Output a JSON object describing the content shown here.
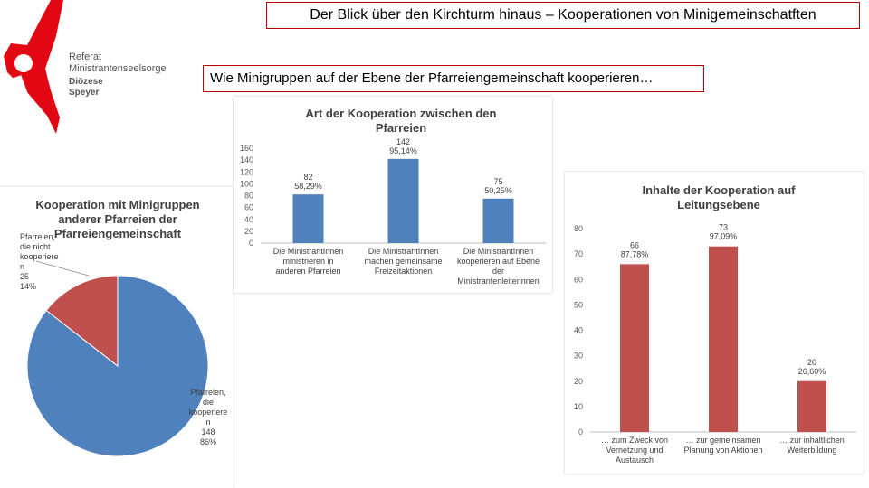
{
  "header": {
    "title": "Der Blick über den Kirchturm hinaus – Kooperationen von Minigemeinschatften",
    "subtitle": "Wie Minigruppen auf der Ebene der Pfarreiengemeinschaft kooperieren…"
  },
  "logo": {
    "line1": "Referat",
    "line2": "Ministrantenseelsorge",
    "line3": "Diözese",
    "line4": "Speyer",
    "color": "#e30613"
  },
  "chart_data": [
    {
      "type": "pie",
      "title": "Kooperation mit Minigruppen anderer Pfarreien der Pfarreiengemeinschaft",
      "slices": [
        {
          "label": "Pfarreien, die kooperieren",
          "value": 148,
          "percent": "86%",
          "color": "#4f81bd"
        },
        {
          "label": "Pfarreien, die nicht kooperieren",
          "value": 25,
          "percent": "14%",
          "color": "#c0504d"
        }
      ]
    },
    {
      "type": "bar",
      "title": "Art der Kooperation zwischen den Pfarreien",
      "categories": [
        "Die MinistrantInnen ministrieren in anderen Pfarreien",
        "Die MinistrantInnen machen gemeinsame Freizeitaktionen",
        "Die MinistrantInnen kooperieren auf Ebene der Ministrantenleiterinnen"
      ],
      "values": [
        82,
        142,
        75
      ],
      "data_labels": [
        "82\n58,29%",
        "142\n95,14%",
        "75\n50,25%"
      ],
      "ylim": [
        0,
        160
      ],
      "yticks": [
        0,
        20,
        40,
        60,
        80,
        100,
        120,
        140,
        160
      ],
      "color": "#4f81bd"
    },
    {
      "type": "bar",
      "title": "Inhalte der Kooperation auf Leitungsebene",
      "categories": [
        "… zum Zweck von Vernetzung und Austausch",
        "… zur gemeinsamen Planung von Aktionen",
        "… zur inhaltlichen Weiterbildung"
      ],
      "values": [
        66,
        73,
        20
      ],
      "data_labels": [
        "66\n87,78%",
        "73\n97,09%",
        "20\n26,60%"
      ],
      "ylim": [
        0,
        80
      ],
      "yticks": [
        0,
        10,
        20,
        30,
        40,
        50,
        60,
        70,
        80
      ],
      "color": "#c0504d"
    }
  ]
}
